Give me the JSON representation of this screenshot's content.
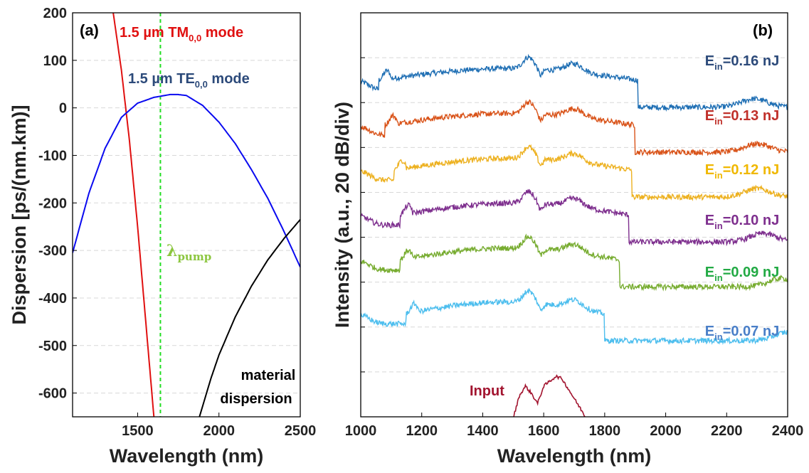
{
  "chart_data": [
    {
      "panel": "(a)",
      "type": "line",
      "xlabel": "Wavelength (nm)",
      "ylabel": "Dispersion [ps/(nm.km)]",
      "xlim": [
        1100,
        2500
      ],
      "ylim": [
        -650,
        200
      ],
      "xticks": [
        1500,
        2000,
        2500
      ],
      "yticks": [
        200,
        100,
        0,
        -100,
        -200,
        -300,
        -400,
        -500,
        -600
      ],
      "grid": "horizontal dashed",
      "series": [
        {
          "name": "1.5 µm TM",
          "label_sub": "0,0",
          "label_suffix": " mode",
          "color": "#e01010",
          "x": [
            1350,
            1400,
            1450,
            1500,
            1550,
            1600
          ],
          "y": [
            200,
            80,
            -70,
            -250,
            -450,
            -650
          ]
        },
        {
          "name": "1.5 µm TE",
          "label_sub": "0,0",
          "label_suffix": " mode",
          "color": "#0a0af0",
          "x": [
            1100,
            1200,
            1300,
            1400,
            1500,
            1600,
            1700,
            1750,
            1800,
            1900,
            2000,
            2100,
            2200,
            2300,
            2400,
            2500
          ],
          "y": [
            -305,
            -180,
            -85,
            -20,
            10,
            22,
            28,
            28,
            26,
            5,
            -30,
            -75,
            -130,
            -190,
            -260,
            -335
          ]
        },
        {
          "name": "material dispersion",
          "color": "#000000",
          "x": [
            1880,
            1950,
            2000,
            2100,
            2200,
            2300,
            2400,
            2500
          ],
          "y": [
            -650,
            -570,
            -520,
            -440,
            -375,
            -320,
            -275,
            -235
          ]
        }
      ],
      "pump": {
        "label": "λ",
        "label_sub": "pump",
        "x": 1640,
        "color": "#22dd22"
      },
      "annotations": {
        "tm_label": {
          "text": "1.5 µm TM",
          "sub": "0,0",
          "suffix": " mode",
          "color": "#e01010"
        },
        "te_label": {
          "text": "1.5 µm TE",
          "sub": "0,0",
          "suffix": " mode",
          "color": "#2c4a7a"
        },
        "material_line1": "material",
        "material_line2": "dispersion"
      }
    },
    {
      "panel": "(b)",
      "type": "line",
      "xlabel": "Wavelength (nm)",
      "ylabel": "Intensity (a.u., 20 dB/div)",
      "xlim": [
        1000,
        2400
      ],
      "ylim": [
        0,
        10
      ],
      "xticks": [
        1000,
        1200,
        1400,
        1600,
        1800,
        2000,
        2200,
        2400
      ],
      "grid": "horizontal dashed",
      "series": [
        {
          "name": "E",
          "sub": "in",
          "value": "=0.16 nJ",
          "color": "#1f6fb4",
          "label_color": "#2c4a7a",
          "offset": 6.7,
          "edge_low": 1060,
          "edge_high": 1910,
          "tail_x": 2290
        },
        {
          "name": "E",
          "sub": "in",
          "value": "=0.13 nJ",
          "color": "#d95319",
          "label_color": "#c0302a",
          "offset": 5.7,
          "edge_low": 1080,
          "edge_high": 1900,
          "tail_x": 2300
        },
        {
          "name": "E",
          "sub": "in",
          "value": "=0.12 nJ",
          "color": "#edb120",
          "label_color": "#f0b800",
          "offset": 4.7,
          "edge_low": 1110,
          "edge_high": 1890,
          "tail_x": 2300
        },
        {
          "name": "E",
          "sub": "in",
          "value": "=0.10 nJ",
          "color": "#7e2f8e",
          "label_color": "#7e2f8e",
          "offset": 3.7,
          "edge_low": 1130,
          "edge_high": 1880,
          "tail_x": 2320
        },
        {
          "name": "E",
          "sub": "in",
          "value": "=0.09 nJ",
          "color": "#77ac30",
          "label_color": "#22aa44",
          "offset": 2.7,
          "edge_low": 1130,
          "edge_high": 1850,
          "tail_x": 2380
        },
        {
          "name": "E",
          "sub": "in",
          "value": "=0.07 nJ",
          "color": "#4dbeee",
          "label_color": "#4a7fc8",
          "offset": 1.5,
          "edge_low": 1150,
          "edge_high": 1800,
          "tail_x": 2400
        },
        {
          "name": "Input",
          "color": "#a2142f",
          "label_color": "#a2142f",
          "offset": 0,
          "x": [
            1500,
            1520,
            1540,
            1560,
            1580,
            1600,
            1620,
            1640,
            1660,
            1680,
            1700,
            1720,
            1740
          ],
          "y": [
            0.0,
            0.9,
            1.3,
            1.0,
            0.6,
            1.3,
            1.5,
            1.7,
            1.6,
            1.2,
            0.8,
            0.4,
            0.0
          ]
        }
      ]
    }
  ]
}
